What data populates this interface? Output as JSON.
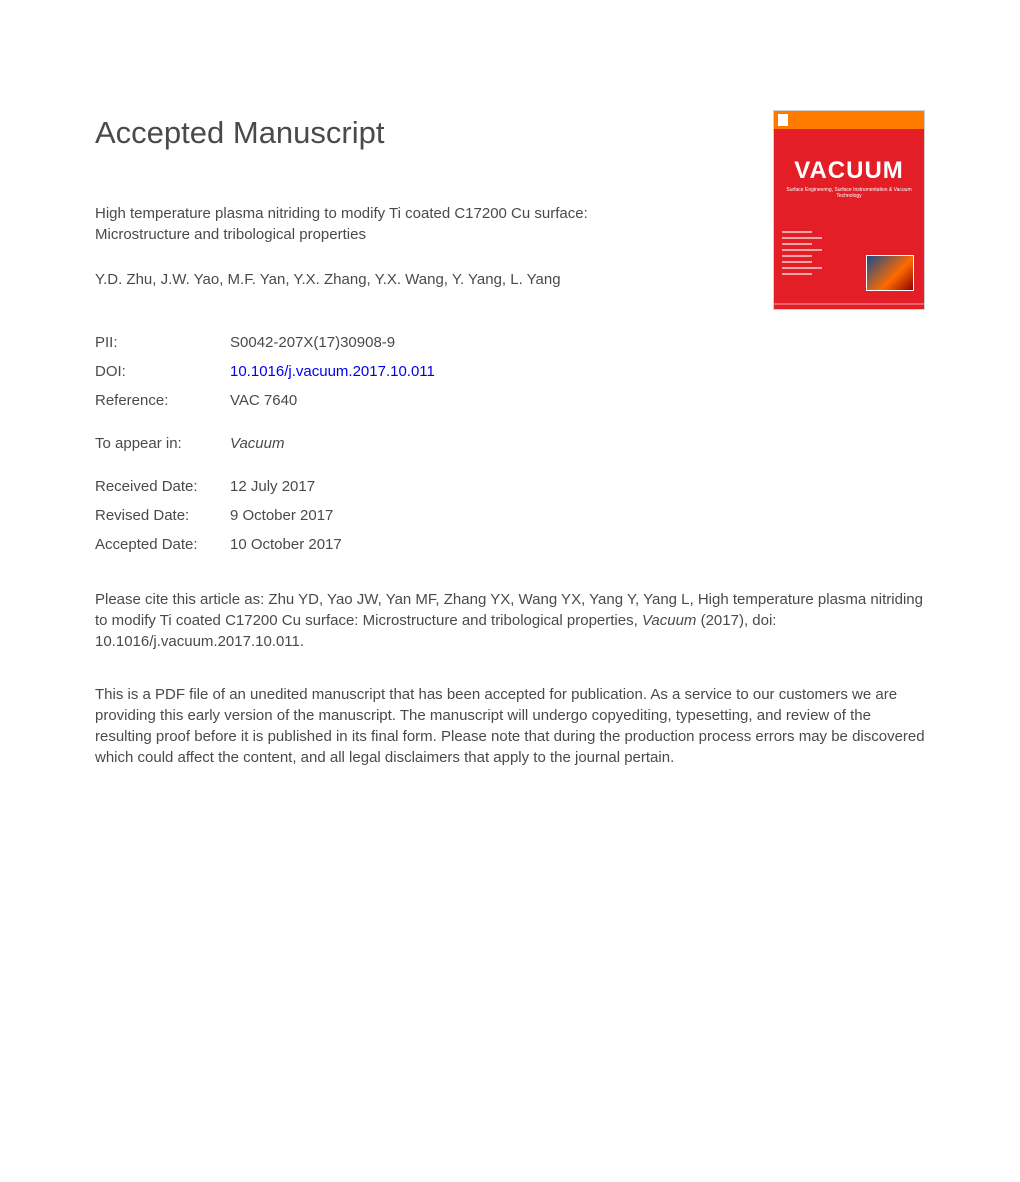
{
  "heading": "Accepted Manuscript",
  "title": "High temperature plasma nitriding to modify Ti coated C17200 Cu surface: Microstructure and tribological properties",
  "authors": "Y.D. Zhu, J.W. Yao, M.F. Yan, Y.X. Zhang, Y.X. Wang, Y. Yang, L. Yang",
  "meta": {
    "pii_label": "PII:",
    "pii_value": "S0042-207X(17)30908-9",
    "doi_label": "DOI:",
    "doi_value": "10.1016/j.vacuum.2017.10.011",
    "reference_label": "Reference:",
    "reference_value": "VAC 7640",
    "appear_label": "To appear in:",
    "appear_value": "Vacuum",
    "received_label": "Received Date:",
    "received_value": "12 July 2017",
    "revised_label": "Revised Date:",
    "revised_value": "9 October 2017",
    "accepted_label": "Accepted Date:",
    "accepted_value": "10 October 2017"
  },
  "citation_prefix": "Please cite this article as: Zhu YD, Yao JW, Yan MF, Zhang YX, Wang YX, Yang Y, Yang L, High temperature plasma nitriding to modify Ti coated C17200 Cu surface: Microstructure and tribological properties, ",
  "citation_journal": "Vacuum",
  "citation_suffix": " (2017), doi: 10.1016/j.vacuum.2017.10.011.",
  "disclaimer": "This is a PDF file of an unedited manuscript that has been accepted for publication. As a service to our customers we are providing this early version of the manuscript. The manuscript will undergo copyediting, typesetting, and review of the resulting proof before it is published in its final form. Please note that during the production process errors may be discovered which could affect the content, and all legal disclaimers that apply to the journal pertain.",
  "cover": {
    "title": "VACUUM",
    "subtitle": "Surface Engineering, Surface Instrumentation & Vacuum Technology",
    "colors": {
      "background": "#e41e26",
      "topbar": "#ff7b00",
      "text": "#ffffff"
    }
  },
  "colors": {
    "text": "#4a4a4a",
    "link": "#0000ee",
    "background": "#ffffff"
  },
  "typography": {
    "heading_fontsize": 31,
    "body_fontsize": 15,
    "font_family": "Arial"
  }
}
